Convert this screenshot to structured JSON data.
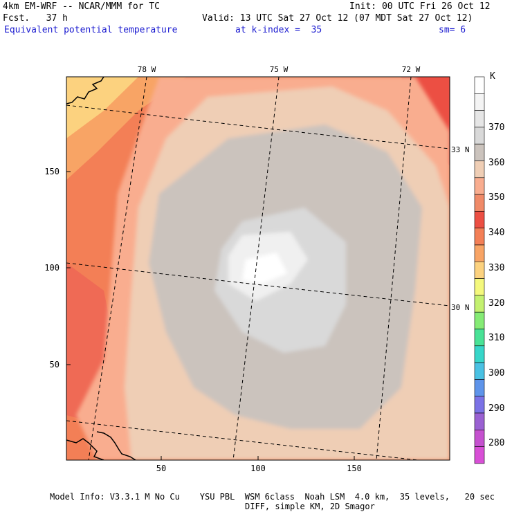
{
  "header": {
    "model": "4km EM-WRF -- NCAR/MMM for TC",
    "init": "Init: 00 UTC Fri 26 Oct 12",
    "fcst": "Fcst.   37 h",
    "valid": "Valid: 13 UTC Sat 27 Oct 12 (07 MDT Sat 27 Oct 12)",
    "field": "Equivalent potential temperature",
    "level": "at k-index =  35",
    "smooth": "sm= 6"
  },
  "axes": {
    "y_ticks": [
      "150",
      "100",
      "50"
    ],
    "x_ticks": [
      "50",
      "100",
      "150"
    ],
    "lon_labels": [
      "78 W",
      "75 W",
      "72 W"
    ],
    "lat_labels": [
      "33 N",
      "30 N"
    ]
  },
  "colorbar": {
    "unit": "K",
    "labels": [
      "370",
      "360",
      "350",
      "340",
      "330",
      "320",
      "310",
      "300",
      "290",
      "280"
    ],
    "colors": [
      "#ffffff",
      "#f4f4f4",
      "#e6e6e6",
      "#d9d9d9",
      "#cbc3bd",
      "#efceb5",
      "#f9ad8f",
      "#f08a68",
      "#ec4f43",
      "#f37f56",
      "#f8a465",
      "#fcd27f",
      "#f4f87c",
      "#c4f170",
      "#85eb75",
      "#49e296",
      "#37d6c9",
      "#4ac1e3",
      "#5e94ea",
      "#7b72e6",
      "#9a61d2",
      "#c551cf",
      "#d84fd6"
    ]
  },
  "footer": {
    "line1": "Model Info: V3.3.1 M No Cu    YSU PBL  WSM 6class  Noah LSM  4.0 km,  35 levels,   20 sec",
    "line2": "DIFF, simple KM, 2D Smagor"
  }
}
